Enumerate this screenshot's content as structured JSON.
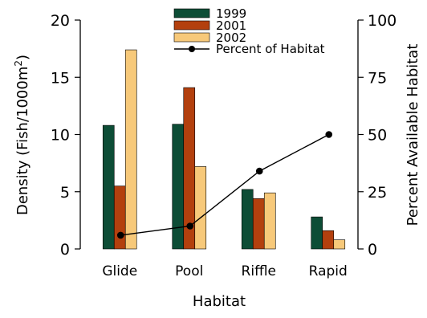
{
  "chart_data": {
    "type": "bar",
    "categories": [
      "Glide",
      "Pool",
      "Riffle",
      "Rapid"
    ],
    "series": [
      {
        "name": "1999",
        "color": "#0d4d36",
        "values": [
          10.8,
          10.9,
          5.2,
          2.8
        ]
      },
      {
        "name": "2001",
        "color": "#b3400e",
        "values": [
          5.5,
          14.1,
          4.4,
          1.6
        ]
      },
      {
        "name": "2002",
        "color": "#f7c97a",
        "values": [
          17.4,
          7.2,
          4.9,
          0.8
        ]
      }
    ],
    "line_series": {
      "name": "Percent of Habitat",
      "color": "#000000",
      "axis": "right",
      "values": [
        6,
        10,
        34,
        50
      ]
    },
    "xlabel": "Habitat",
    "ylabel": "Density (Fish/1000m",
    "ylabel_superscript": "2",
    "ylabel_suffix": ")",
    "y2label": "Percent Available Habitat",
    "ylim": [
      0,
      20
    ],
    "y2lim": [
      0,
      100
    ],
    "yticks": [
      "0",
      "5",
      "10",
      "15",
      "20"
    ],
    "y2ticks": [
      "0",
      "25",
      "50",
      "75",
      "100"
    ],
    "legend_position": "top-center",
    "grid": false
  }
}
